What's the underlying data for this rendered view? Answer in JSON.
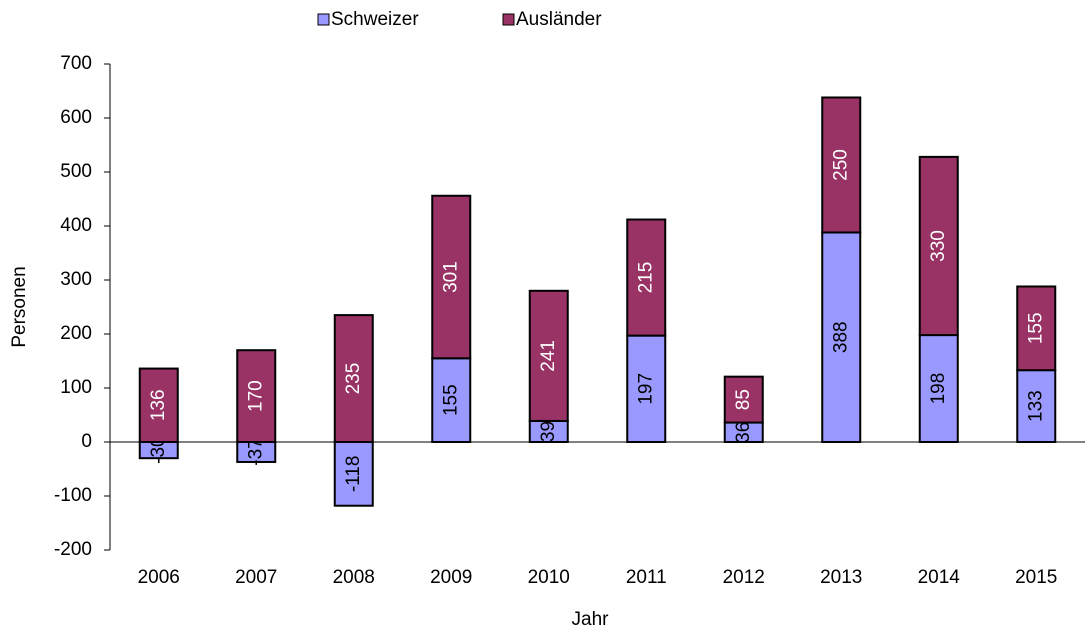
{
  "chart_data": {
    "type": "stacked_bar",
    "categories": [
      "2006",
      "2007",
      "2008",
      "2009",
      "2010",
      "2011",
      "2012",
      "2013",
      "2014",
      "2015"
    ],
    "series": [
      {
        "name": "Schweizer",
        "color": "#9999ff",
        "values": [
          -30,
          -37,
          -118,
          155,
          39,
          197,
          36,
          388,
          198,
          133
        ]
      },
      {
        "name": "Ausländer",
        "color": "#993366",
        "values": [
          136,
          170,
          235,
          301,
          241,
          215,
          85,
          250,
          330,
          155
        ]
      }
    ],
    "ylim": [
      -200,
      700
    ],
    "yticks": [
      -200,
      -100,
      0,
      100,
      200,
      300,
      400,
      500,
      600,
      700
    ],
    "ylabel": "Personen",
    "xlabel": "Jahr",
    "legend": "top"
  }
}
